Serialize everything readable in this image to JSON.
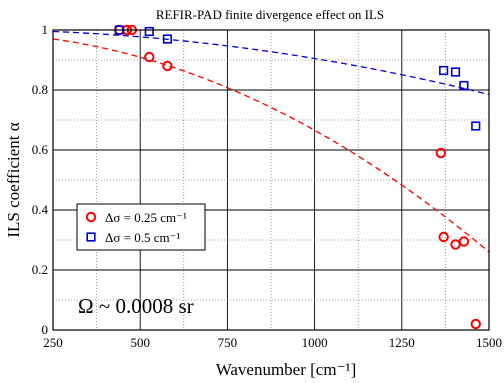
{
  "chart_data": {
    "type": "scatter",
    "title": "REFIR-PAD finite divergence effect on ILS",
    "xlabel": "Wavenumber [cm⁻¹]",
    "ylabel": "ILS coefficient α",
    "xlim": [
      250,
      1500
    ],
    "ylim": [
      0,
      1
    ],
    "x_ticks": [
      250,
      500,
      750,
      1000,
      1250,
      1500
    ],
    "x_tick_labels": [
      "250",
      "500",
      "750",
      "1000",
      "1250",
      "1500"
    ],
    "y_ticks": [
      0,
      0.2,
      0.4,
      0.6,
      0.8,
      1
    ],
    "y_tick_labels": [
      "0",
      "0.2",
      "0.4",
      "0.6",
      "0.8",
      "1"
    ],
    "grid": true,
    "legend_position": "lower-left",
    "series": [
      {
        "name": "Δσ = 0.25 cm⁻¹",
        "color": "#ff0000",
        "marker": "circle",
        "points": [
          [
            440,
            1.0
          ],
          [
            462,
            1.0
          ],
          [
            476,
            1.0
          ],
          [
            526,
            0.91
          ],
          [
            578,
            0.88
          ],
          [
            1362,
            0.59
          ],
          [
            1370,
            0.31
          ],
          [
            1404,
            0.285
          ],
          [
            1428,
            0.295
          ],
          [
            1462,
            0.02
          ]
        ]
      },
      {
        "name": "Δσ = 0.5 cm⁻¹",
        "color": "#0000cc",
        "marker": "square",
        "points": [
          [
            440,
            1.0
          ],
          [
            526,
            0.995
          ],
          [
            578,
            0.97
          ],
          [
            1370,
            0.865
          ],
          [
            1404,
            0.86
          ],
          [
            1428,
            0.815
          ],
          [
            1462,
            0.68
          ]
        ]
      }
    ],
    "fit_curves": [
      {
        "color": "#ff0000",
        "style": "dashed",
        "x": [
          250,
          1500
        ],
        "y_at_250": 0.97,
        "y_at_1500": 0.26
      },
      {
        "color": "#0000cc",
        "style": "dashed",
        "x": [
          250,
          1500
        ],
        "y_at_250": 0.995,
        "y_at_1500": 0.785
      }
    ],
    "annotation": "Ω ~ 0.0008 sr"
  }
}
